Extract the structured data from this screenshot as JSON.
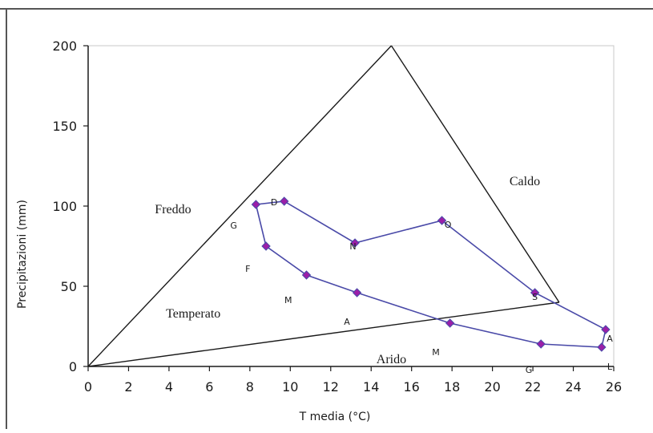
{
  "chart_data": {
    "type": "line",
    "xlabel": "T  media (°C)",
    "ylabel": "Precipitazioni (mm)",
    "xlim": [
      0,
      26
    ],
    "ylim": [
      0,
      200
    ],
    "x_ticks": [
      0,
      2,
      4,
      6,
      8,
      10,
      12,
      14,
      16,
      18,
      20,
      22,
      24,
      26
    ],
    "y_ticks": [
      0,
      50,
      100,
      150,
      200
    ],
    "grid": false,
    "legend": "none",
    "colors": {
      "series_line": "#4a4aa8",
      "marker": "#9b1fa8",
      "triangle": "#1a1a1a",
      "axis": "#1a1a1a",
      "plot_border": "#c8c8c8",
      "outer_border": "#555555"
    },
    "zone_lines": [
      {
        "x": [
          0,
          15
        ],
        "y": [
          0,
          200
        ]
      },
      {
        "x": [
          15,
          23.3
        ],
        "y": [
          200,
          40
        ]
      },
      {
        "x": [
          0,
          23.3
        ],
        "y": [
          0,
          40
        ]
      }
    ],
    "regions": [
      {
        "label": "Caldo",
        "x": 21.6,
        "y": 113
      },
      {
        "label": "Freddo",
        "x": 4.2,
        "y": 95.5
      },
      {
        "label": "Temperato",
        "x": 5.2,
        "y": 30.5
      },
      {
        "label": "Arido",
        "x": 15,
        "y": 2
      }
    ],
    "series": [
      {
        "x": [
          8.3,
          9.7,
          13.2,
          17.5,
          22.1,
          25.6,
          25.4,
          22.4,
          17.9,
          13.3,
          10.8,
          8.8,
          8.3
        ],
        "y": [
          101,
          103,
          77,
          91,
          46,
          23,
          12,
          14,
          27,
          46,
          57,
          75,
          101
        ]
      }
    ],
    "point_labels": [
      {
        "label": "D",
        "x": 9.2,
        "y": 100.5
      },
      {
        "label": "N",
        "x": 13.1,
        "y": 73
      },
      {
        "label": "O",
        "x": 17.8,
        "y": 86.5
      },
      {
        "label": "S",
        "x": 22.1,
        "y": 41.5
      },
      {
        "label": "A",
        "x": 25.8,
        "y": 15.5
      },
      {
        "label": "L",
        "x": 25.8,
        "y": -2
      },
      {
        "label": "G",
        "x": 21.8,
        "y": -4
      },
      {
        "label": "M",
        "x": 17.2,
        "y": 7
      },
      {
        "label": "A",
        "x": 12.8,
        "y": 26
      },
      {
        "label": "M",
        "x": 9.9,
        "y": 39.5
      },
      {
        "label": "F",
        "x": 7.9,
        "y": 59
      },
      {
        "label": "G",
        "x": 7.2,
        "y": 86
      }
    ]
  }
}
